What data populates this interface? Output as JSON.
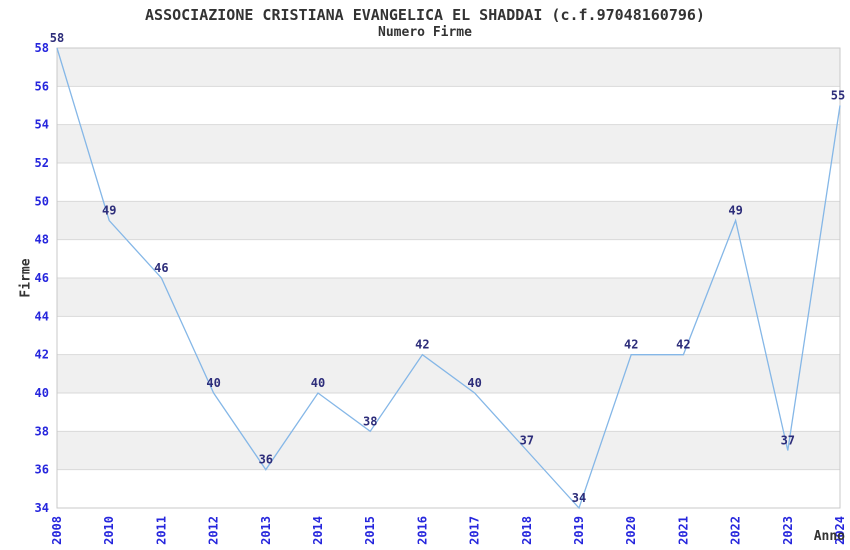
{
  "chart_data": {
    "type": "line",
    "title": "ASSOCIAZIONE CRISTIANA EVANGELICA EL SHADDAI (c.f.97048160796)",
    "subtitle": "Numero Firme",
    "xlabel": "Anno",
    "ylabel": "Firme",
    "categories": [
      "2008",
      "2010",
      "2011",
      "2012",
      "2013",
      "2014",
      "2015",
      "2016",
      "2017",
      "2018",
      "2019",
      "2020",
      "2021",
      "2022",
      "2023",
      "2024"
    ],
    "values": [
      58,
      49,
      46,
      40,
      36,
      40,
      38,
      42,
      40,
      37,
      34,
      42,
      42,
      49,
      37,
      55
    ],
    "ylim": [
      34,
      58
    ],
    "ytick_step": 2,
    "grid": "horizontal",
    "banded_background": true,
    "show_point_labels": true,
    "legend": "none",
    "x_tick_rotation": -90,
    "colors": {
      "line": "#85b7e7",
      "tick_label": "#2626dd",
      "point_label": "#2d2d7a",
      "band": "#f0f0f0",
      "gridline": "#d9d9d9",
      "plot_border": "#c9c9c9",
      "title_text": "#333333",
      "background": "#ffffff"
    }
  }
}
